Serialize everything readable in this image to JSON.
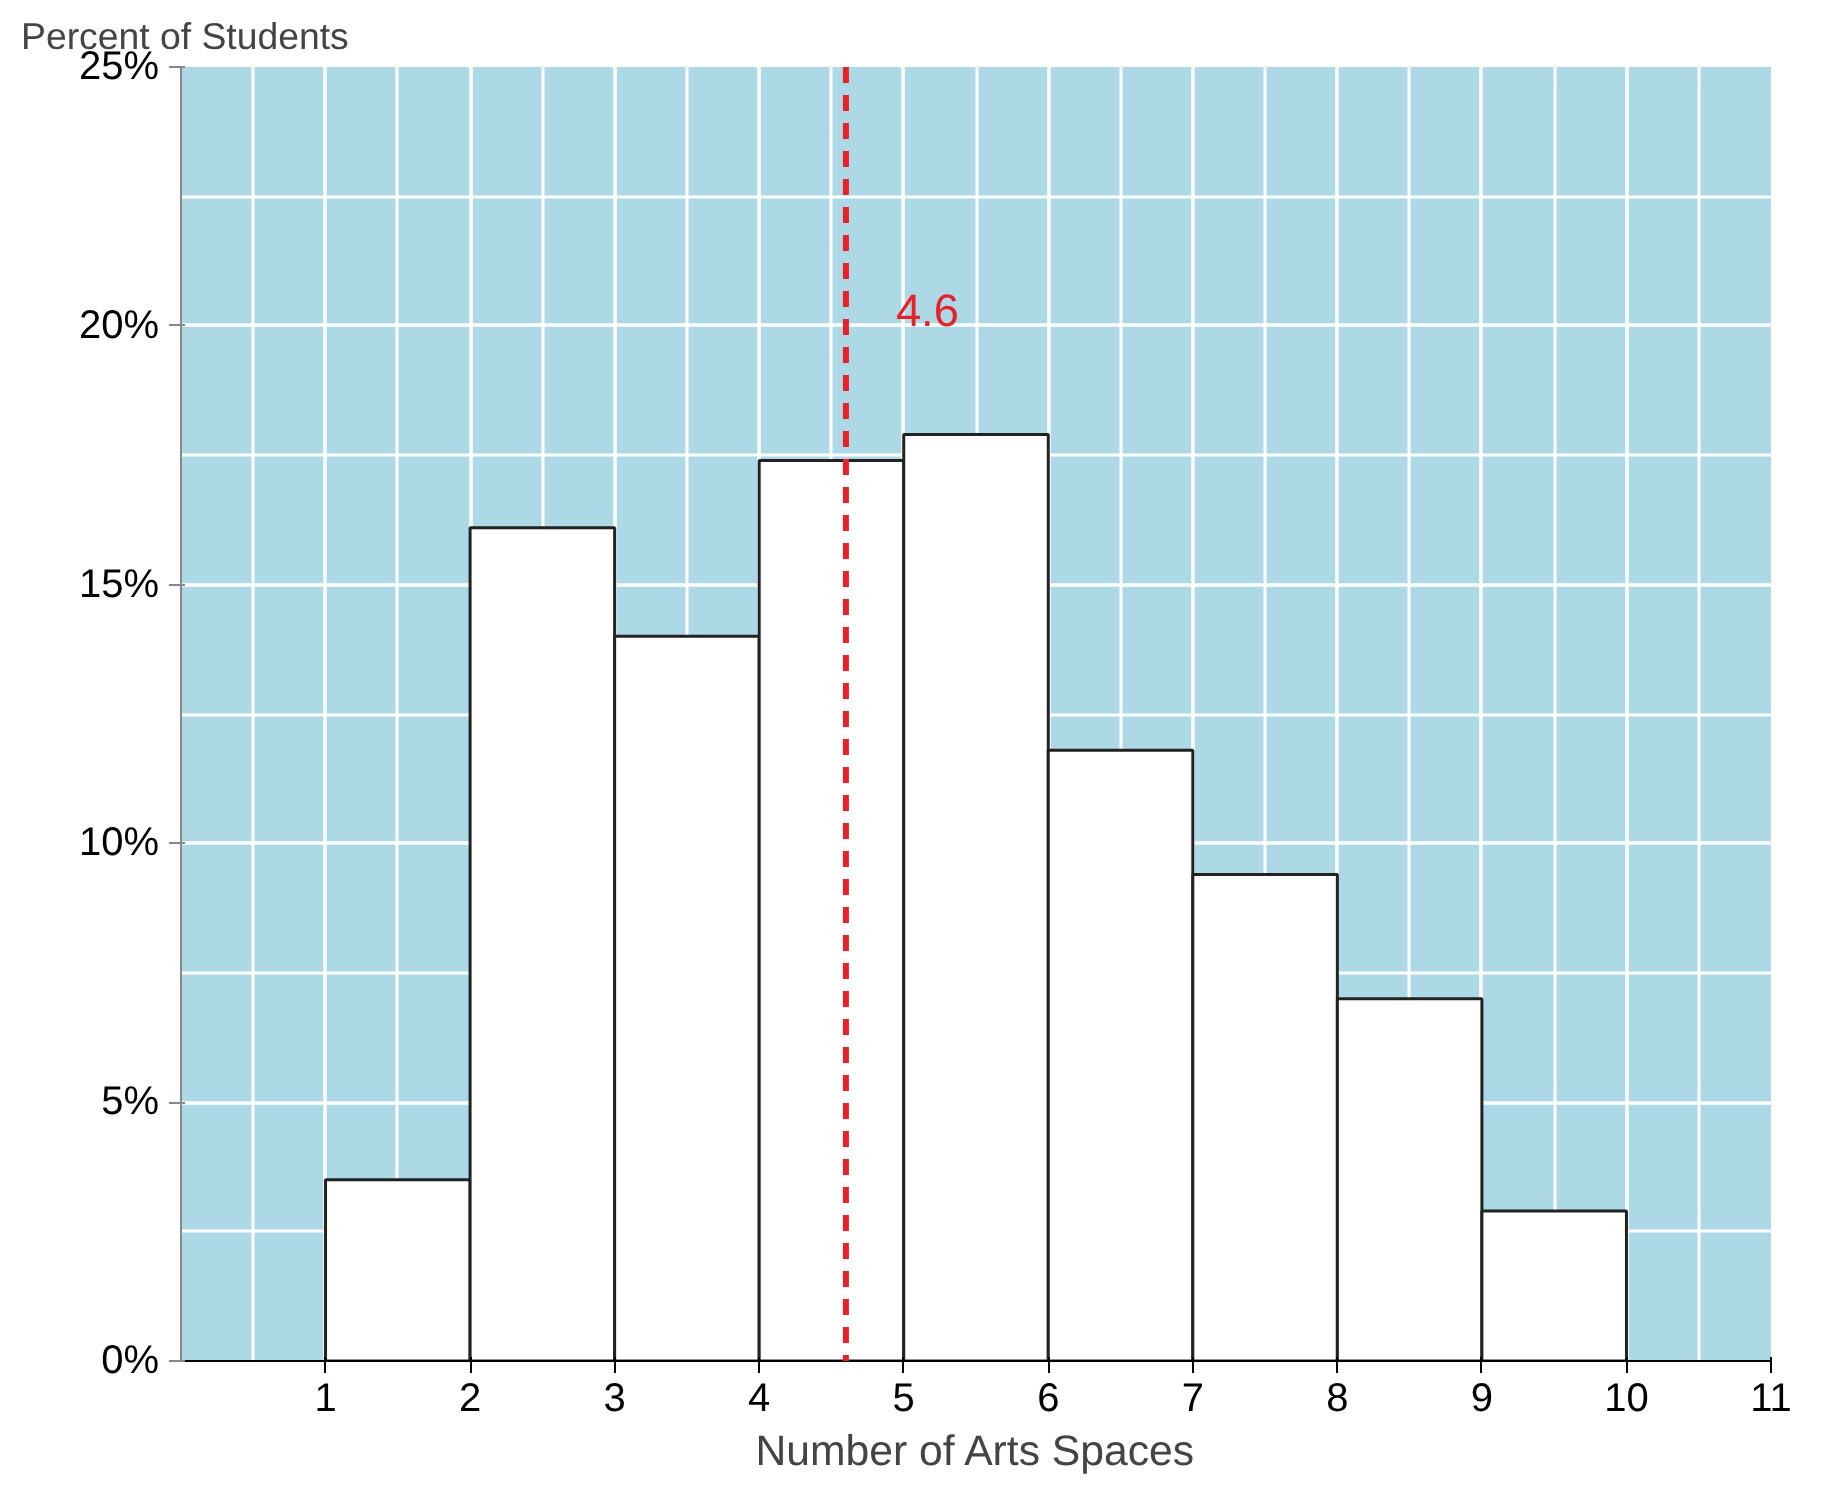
{
  "chart_data": {
    "type": "histogram",
    "ylabel": "Percent of Students",
    "xlabel": "Number of Arts Spaces",
    "bins": [
      1,
      2,
      3,
      4,
      5,
      6,
      7,
      8,
      9,
      10
    ],
    "values": [
      3.5,
      16.1,
      14.0,
      17.4,
      17.9,
      11.8,
      9.4,
      7.0,
      2.9
    ],
    "color": "#ffffff",
    "xlim": [
      0,
      11
    ],
    "xticks": [
      1,
      2,
      3,
      4,
      5,
      6,
      7,
      8,
      9,
      10,
      11
    ],
    "ylim": [
      0,
      25
    ],
    "yticks": [
      {
        "value": 0,
        "label": "0%"
      },
      {
        "value": 5,
        "label": "5%"
      },
      {
        "value": 10,
        "label": "10%"
      },
      {
        "value": 15,
        "label": "15%"
      },
      {
        "value": 20,
        "label": "20%"
      },
      {
        "value": 25,
        "label": "25%"
      }
    ],
    "ref_lines": [
      {
        "axis": "x",
        "value": 4.6,
        "label": "4.6",
        "color": "#e8202a",
        "line_style": "dashed"
      }
    ],
    "grid": true
  }
}
